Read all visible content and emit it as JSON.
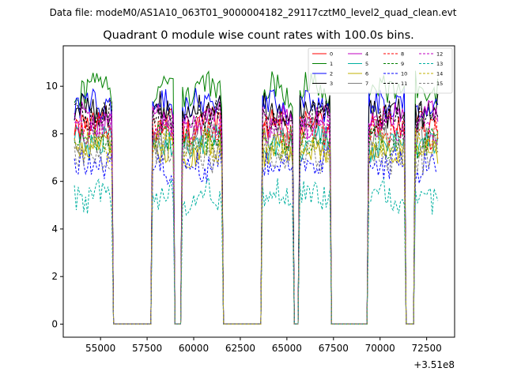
{
  "figure": {
    "suptitle": "Data file: modeM0/AS1A10_063T01_9000004182_29117cztM0_level2_quad_clean.evt"
  },
  "chart_data": {
    "type": "line",
    "title": "Quadrant 0 module wise count rates with 100.0s bins.",
    "xlabel": "",
    "ylabel": "",
    "offset_label": "+3.51e8",
    "xlim": [
      53000,
      74000
    ],
    "ylim": [
      -0.55,
      11.7
    ],
    "x_ticks": [
      55000,
      57500,
      60000,
      62500,
      65000,
      67500,
      70000,
      72500
    ],
    "x_tick_labels": [
      "55000",
      "57500",
      "60000",
      "62500",
      "65000",
      "67500",
      "70000",
      "72500"
    ],
    "y_ticks": [
      0,
      2,
      4,
      6,
      8,
      10
    ],
    "y_tick_labels": [
      "0",
      "2",
      "4",
      "6",
      "8",
      "10"
    ],
    "grid": false,
    "legend_position": "top-right",
    "on_intervals": [
      [
        53600,
        55600
      ],
      [
        57800,
        58950
      ],
      [
        59400,
        61500
      ],
      [
        63700,
        65300
      ],
      [
        65700,
        67350
      ],
      [
        69400,
        71300
      ],
      [
        71900,
        73150
      ]
    ],
    "zero_level": 0,
    "series": [
      {
        "name": "0",
        "color": "#ff0000",
        "dash": false,
        "mean": 8.4
      },
      {
        "name": "1",
        "color": "#008000",
        "dash": false,
        "mean": 9.9
      },
      {
        "name": "2",
        "color": "#0000ff",
        "dash": false,
        "mean": 9.2
      },
      {
        "name": "3",
        "color": "#000000",
        "dash": false,
        "mean": 9.0
      },
      {
        "name": "4",
        "color": "#c000c0",
        "dash": false,
        "mean": 8.6
      },
      {
        "name": "5",
        "color": "#00b0a0",
        "dash": false,
        "mean": 7.6
      },
      {
        "name": "6",
        "color": "#c0b000",
        "dash": false,
        "mean": 7.3
      },
      {
        "name": "7",
        "color": "#808080",
        "dash": false,
        "mean": 7.9
      },
      {
        "name": "8",
        "color": "#ff0000",
        "dash": true,
        "mean": 8.1
      },
      {
        "name": "9",
        "color": "#008000",
        "dash": true,
        "mean": 7.7
      },
      {
        "name": "10",
        "color": "#0000ff",
        "dash": true,
        "mean": 6.7
      },
      {
        "name": "11",
        "color": "#000000",
        "dash": true,
        "mean": 8.7
      },
      {
        "name": "12",
        "color": "#c000c0",
        "dash": true,
        "mean": 8.3
      },
      {
        "name": "13",
        "color": "#00b0a0",
        "dash": true,
        "mean": 5.4
      },
      {
        "name": "14",
        "color": "#c0b000",
        "dash": true,
        "mean": 7.5
      },
      {
        "name": "15",
        "color": "#808080",
        "dash": true,
        "mean": 7.1
      }
    ]
  }
}
